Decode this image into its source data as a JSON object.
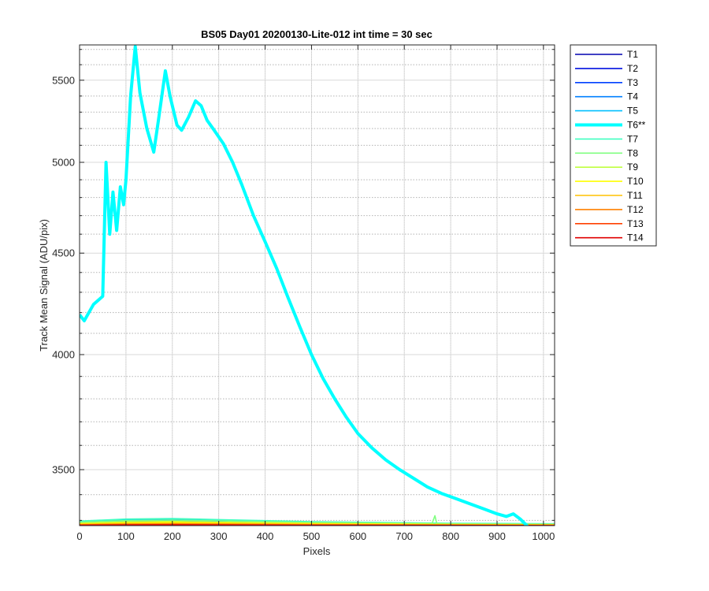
{
  "chart_data": {
    "type": "line",
    "title": "BS05 Day01 20200130-Lite-012 int time = 30 sec",
    "xlabel": "Pixels",
    "ylabel": "Track Mean Signal (ADU/pix)",
    "xlim": [
      0,
      1024
    ],
    "ylim": [
      3280,
      5730
    ],
    "y_scale": "log",
    "x_ticks": [
      0,
      100,
      200,
      300,
      400,
      500,
      600,
      700,
      800,
      900,
      1000
    ],
    "y_ticks": [
      3500,
      4000,
      4500,
      5000,
      5500
    ],
    "grid": true,
    "legend_position": "outside-top-right",
    "highlight_series": "T6**",
    "series": [
      {
        "name": "T1",
        "color": "#0000b0",
        "x": [
          0,
          100,
          200,
          300,
          500,
          800,
          1024
        ],
        "values": [
          3282,
          3284,
          3285,
          3284,
          3283,
          3282,
          3282
        ]
      },
      {
        "name": "T2",
        "color": "#0010e0",
        "x": [
          0,
          100,
          200,
          300,
          500,
          800,
          1024
        ],
        "values": [
          3284,
          3287,
          3288,
          3287,
          3285,
          3283,
          3283
        ]
      },
      {
        "name": "T3",
        "color": "#0040ff",
        "x": [
          0,
          100,
          200,
          300,
          500,
          800,
          1024
        ],
        "values": [
          3286,
          3290,
          3292,
          3290,
          3287,
          3284,
          3283
        ]
      },
      {
        "name": "T4",
        "color": "#0080ff",
        "x": [
          0,
          100,
          200,
          300,
          500,
          800,
          1024
        ],
        "values": [
          3290,
          3296,
          3298,
          3295,
          3290,
          3286,
          3285
        ]
      },
      {
        "name": "T5",
        "color": "#00c0ff",
        "x": [
          0,
          100,
          200,
          300,
          500,
          800,
          1024
        ],
        "values": [
          3296,
          3303,
          3305,
          3301,
          3294,
          3288,
          3286
        ]
      },
      {
        "name": "T6**",
        "color": "#00ffff",
        "x": [
          0,
          10,
          20,
          30,
          40,
          50,
          57,
          65,
          72,
          80,
          88,
          95,
          100,
          110,
          120,
          130,
          145,
          160,
          170,
          185,
          195,
          210,
          220,
          235,
          250,
          262,
          275,
          290,
          310,
          330,
          350,
          375,
          400,
          425,
          450,
          475,
          500,
          525,
          550,
          575,
          600,
          630,
          660,
          690,
          720,
          750,
          780,
          810,
          840,
          870,
          900,
          920,
          935,
          950,
          970,
          990,
          1010,
          1024
        ],
        "values": [
          4190,
          4160,
          4200,
          4240,
          4260,
          4280,
          5000,
          4600,
          4830,
          4620,
          4860,
          4760,
          4900,
          5400,
          5720,
          5420,
          5200,
          5060,
          5250,
          5560,
          5400,
          5220,
          5190,
          5270,
          5370,
          5340,
          5250,
          5190,
          5110,
          5000,
          4870,
          4700,
          4560,
          4420,
          4270,
          4130,
          4000,
          3890,
          3800,
          3720,
          3650,
          3590,
          3540,
          3500,
          3465,
          3430,
          3405,
          3385,
          3365,
          3345,
          3325,
          3315,
          3325,
          3305,
          3270,
          3265,
          3265,
          3265
        ]
      },
      {
        "name": "T7",
        "color": "#40ffc0",
        "x": [
          0,
          100,
          200,
          300,
          500,
          800,
          1024
        ],
        "values": [
          3297,
          3305,
          3307,
          3303,
          3295,
          3289,
          3287
        ]
      },
      {
        "name": "T8",
        "color": "#80ff80",
        "x": [
          0,
          100,
          200,
          300,
          500,
          760,
          766,
          770,
          800,
          1024
        ],
        "values": [
          3293,
          3299,
          3301,
          3298,
          3292,
          3288,
          3318,
          3288,
          3287,
          3285
        ]
      },
      {
        "name": "T9",
        "color": "#c0ff40",
        "x": [
          0,
          100,
          200,
          300,
          500,
          800,
          1024
        ],
        "values": [
          3289,
          3294,
          3296,
          3293,
          3289,
          3285,
          3284
        ]
      },
      {
        "name": "T10",
        "color": "#ffff00",
        "x": [
          0,
          100,
          200,
          300,
          500,
          800,
          1024
        ],
        "values": [
          3287,
          3291,
          3293,
          3291,
          3287,
          3284,
          3283
        ]
      },
      {
        "name": "T11",
        "color": "#ffc000",
        "x": [
          0,
          100,
          200,
          300,
          500,
          800,
          1024
        ],
        "values": [
          3285,
          3288,
          3289,
          3288,
          3285,
          3283,
          3282
        ]
      },
      {
        "name": "T12",
        "color": "#ff8000",
        "x": [
          0,
          100,
          200,
          300,
          500,
          800,
          1024
        ],
        "values": [
          3283,
          3285,
          3286,
          3285,
          3283,
          3282,
          3281
        ]
      },
      {
        "name": "T13",
        "color": "#ff4000",
        "x": [
          0,
          100,
          200,
          300,
          500,
          800,
          1024
        ],
        "values": [
          3282,
          3283,
          3284,
          3283,
          3282,
          3281,
          3281
        ]
      },
      {
        "name": "T14",
        "color": "#e00000",
        "x": [
          0,
          100,
          200,
          300,
          500,
          800,
          1024
        ],
        "values": [
          3281,
          3282,
          3282,
          3282,
          3281,
          3281,
          3280
        ]
      }
    ]
  }
}
